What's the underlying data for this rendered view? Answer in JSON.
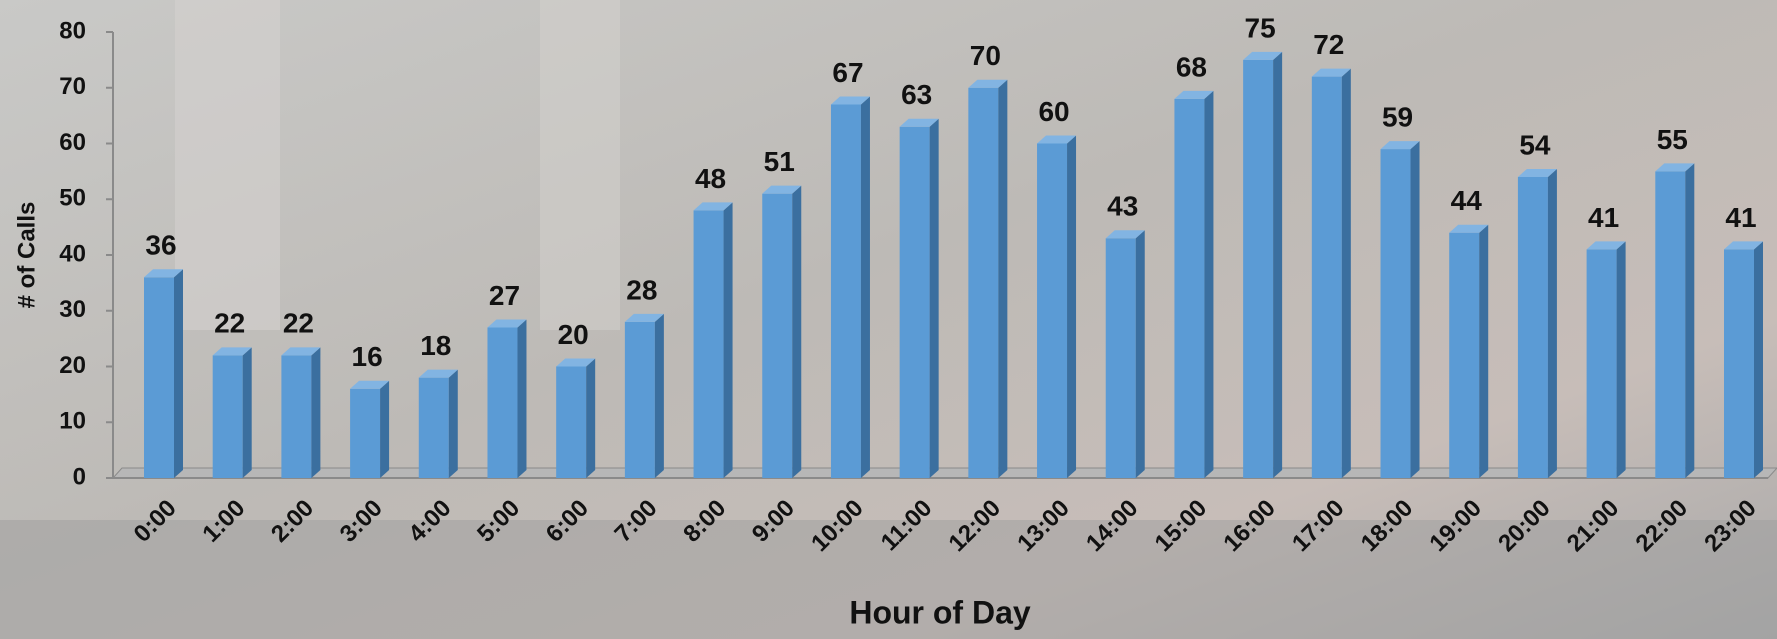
{
  "chart_data": {
    "type": "bar",
    "x_label": "Hour of Day",
    "y_label": "# of Calls",
    "categories": [
      "0:00",
      "1:00",
      "2:00",
      "3:00",
      "4:00",
      "5:00",
      "6:00",
      "7:00",
      "8:00",
      "9:00",
      "10:00",
      "11:00",
      "12:00",
      "13:00",
      "14:00",
      "15:00",
      "16:00",
      "17:00",
      "18:00",
      "19:00",
      "20:00",
      "21:00",
      "22:00",
      "23:00"
    ],
    "values": [
      36,
      22,
      22,
      16,
      18,
      27,
      20,
      28,
      48,
      51,
      67,
      63,
      70,
      60,
      43,
      68,
      75,
      72,
      59,
      44,
      54,
      41,
      55,
      41
    ],
    "color": "#5b9bd5",
    "ylim": [
      0,
      80
    ],
    "yticks": [
      0,
      10,
      20,
      30,
      40,
      50,
      60,
      70,
      80
    ],
    "grid": false
  }
}
